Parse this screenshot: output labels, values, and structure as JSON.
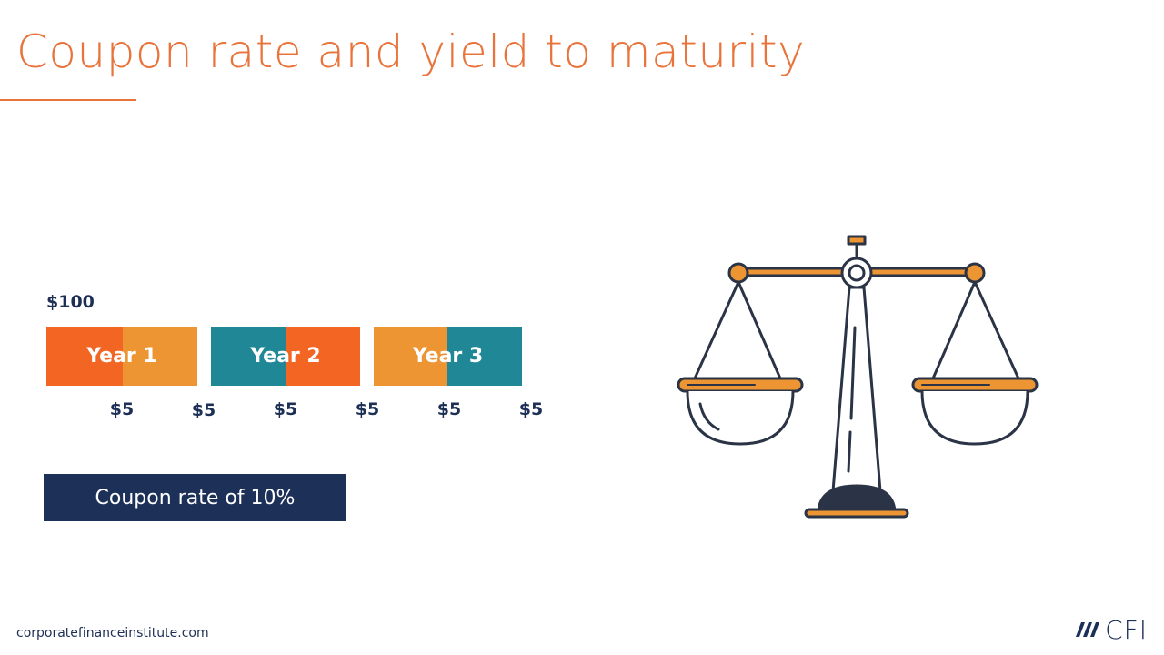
{
  "slide": {
    "title": "Coupon rate and yield to maturity",
    "principal_label": "$100",
    "years": [
      {
        "label": "Year 1"
      },
      {
        "label": "Year 2"
      },
      {
        "label": "Year 3"
      }
    ],
    "cash_flows": [
      "$5",
      "$5",
      "$5",
      "$5",
      "$5",
      "$5"
    ],
    "coupon_box_label": "Coupon rate of 10%",
    "footer_url": "corporatefinanceinstitute.com",
    "logo_text": "CFI"
  },
  "colors": {
    "accent_orange": "#e8743b",
    "bar_orange_red": "#f26522",
    "bar_amber": "#ec9532",
    "bar_teal": "#1f8796",
    "navy": "#1c3058",
    "text_navy": "#1d2f55"
  },
  "icons": [
    "balance-scale-icon",
    "cfi-logo-icon"
  ]
}
